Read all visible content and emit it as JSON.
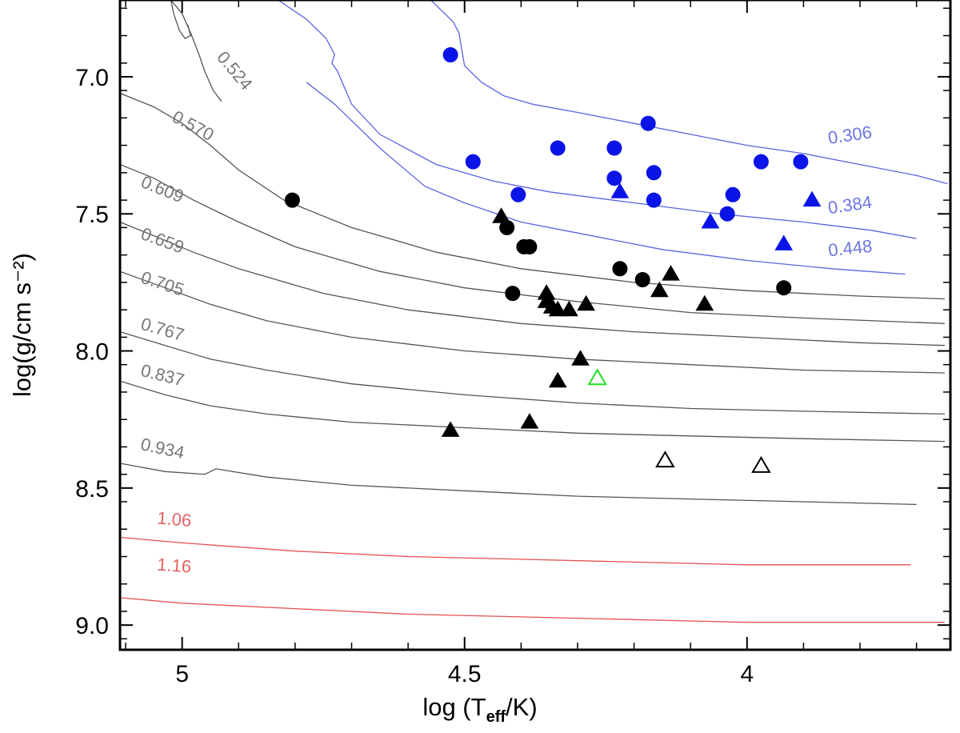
{
  "chart_data": {
    "type": "scatter",
    "title": "",
    "xlabel_prefix": "log (T",
    "xlabel_sub": "eff",
    "xlabel_suffix": "/K)",
    "ylabel": "log(g/cm s⁻²)",
    "xlim": [
      5.11,
      3.64
    ],
    "ylim": [
      9.09,
      6.72
    ],
    "x_ticks": [
      5.0,
      4.5,
      4.0
    ],
    "x_tick_labels": [
      "5",
      "4.5",
      "4"
    ],
    "y_ticks": [
      7.0,
      7.5,
      8.0,
      8.5,
      9.0
    ],
    "y_tick_labels": [
      "7.0",
      "7.5",
      "8.0",
      "8.5",
      "9.0"
    ],
    "colors": {
      "gray_track": "#555555",
      "gray_label": "#777777",
      "blue_track": "#5a64e0",
      "blue_label": "#6b76e2",
      "red_track": "#e65050",
      "red_label": "#e46262",
      "blue_marker": "#0a14e6",
      "black_marker": "#000000",
      "green_marker": "#22dd22"
    },
    "cooling_tracks": [
      {
        "label": "0.306",
        "color": "blue",
        "label_at": [
          3.855,
          7.245
        ],
        "label_angle": -8,
        "x": [
          4.56,
          4.54,
          4.52,
          4.51,
          4.505,
          4.5,
          4.47,
          4.43,
          4.38,
          4.3,
          4.2,
          4.1,
          4.0,
          3.9,
          3.8,
          3.7,
          3.645
        ],
        "y": [
          6.72,
          6.76,
          6.8,
          6.84,
          6.9,
          6.96,
          7.02,
          7.07,
          7.1,
          7.13,
          7.17,
          7.21,
          7.25,
          7.28,
          7.32,
          7.36,
          7.39
        ]
      },
      {
        "label": "0.384",
        "color": "blue",
        "label_at": [
          3.855,
          7.5
        ],
        "label_angle": -8,
        "x": [
          4.83,
          4.78,
          4.745,
          4.73,
          4.735,
          4.725,
          4.7,
          4.65,
          4.55,
          4.45,
          4.35,
          4.2,
          4.05,
          3.9,
          3.78,
          3.7
        ],
        "y": [
          6.72,
          6.79,
          6.86,
          6.92,
          6.95,
          6.98,
          7.1,
          7.21,
          7.32,
          7.38,
          7.42,
          7.46,
          7.5,
          7.53,
          7.56,
          7.59
        ]
      },
      {
        "label": "0.448",
        "color": "blue",
        "label_at": [
          3.855,
          7.655
        ],
        "label_angle": -6,
        "x": [
          4.78,
          4.73,
          4.65,
          4.57,
          4.5,
          4.4,
          4.3,
          4.15,
          4.0,
          3.85,
          3.72
        ],
        "y": [
          7.02,
          7.1,
          7.26,
          7.4,
          7.46,
          7.53,
          7.57,
          7.63,
          7.67,
          7.7,
          7.72
        ]
      },
      {
        "label": "0.524",
        "color": "gray",
        "label_at": [
          4.94,
          6.93
        ],
        "label_angle": 50,
        "x": [
          5.02,
          5.0,
          4.985,
          4.97,
          4.96,
          4.945,
          4.93
        ],
        "y": [
          6.72,
          6.77,
          6.84,
          6.92,
          6.98,
          7.05,
          7.09
        ]
      },
      {
        "label": "0.570",
        "color": "gray",
        "label_at": [
          5.02,
          7.16
        ],
        "label_angle": 28,
        "x": [
          5.11,
          5.05,
          5.0,
          4.95,
          4.9,
          4.82,
          4.7,
          4.55,
          4.4,
          4.2,
          4.0,
          3.8,
          3.65
        ],
        "y": [
          7.06,
          7.11,
          7.17,
          7.25,
          7.34,
          7.45,
          7.55,
          7.64,
          7.7,
          7.75,
          7.78,
          7.8,
          7.81
        ]
      },
      {
        "label": "0.609",
        "color": "gray",
        "label_at": [
          5.075,
          7.4
        ],
        "label_angle": 22,
        "x": [
          5.11,
          5.05,
          4.98,
          4.9,
          4.8,
          4.65,
          4.5,
          4.3,
          4.1,
          3.9,
          3.65
        ],
        "y": [
          7.32,
          7.37,
          7.45,
          7.53,
          7.62,
          7.71,
          7.77,
          7.82,
          7.86,
          7.88,
          7.9
        ]
      },
      {
        "label": "0.659",
        "color": "gray",
        "label_at": [
          5.075,
          7.59
        ],
        "label_angle": 20,
        "x": [
          5.11,
          5.05,
          4.98,
          4.9,
          4.75,
          4.6,
          4.4,
          4.2,
          4.0,
          3.8,
          3.65
        ],
        "y": [
          7.53,
          7.58,
          7.64,
          7.7,
          7.79,
          7.85,
          7.9,
          7.93,
          7.95,
          7.97,
          7.98
        ]
      },
      {
        "label": "0.705",
        "color": "gray",
        "label_at": [
          5.075,
          7.75
        ],
        "label_angle": 18,
        "x": [
          5.11,
          5.03,
          4.95,
          4.85,
          4.7,
          4.5,
          4.3,
          4.1,
          3.9,
          3.65
        ],
        "y": [
          7.71,
          7.77,
          7.83,
          7.89,
          7.95,
          8.0,
          8.03,
          8.05,
          8.07,
          8.08
        ]
      },
      {
        "label": "0.767",
        "color": "gray",
        "label_at": [
          5.075,
          7.92
        ],
        "label_angle": 16,
        "x": [
          5.11,
          5.03,
          4.95,
          4.85,
          4.7,
          4.5,
          4.3,
          4.1,
          3.9,
          3.65
        ],
        "y": [
          7.93,
          7.98,
          8.03,
          8.07,
          8.12,
          8.16,
          8.19,
          8.21,
          8.22,
          8.23
        ]
      },
      {
        "label": "0.837",
        "color": "gray",
        "label_at": [
          5.075,
          8.09
        ],
        "label_angle": 14,
        "x": [
          5.11,
          5.03,
          4.95,
          4.85,
          4.7,
          4.5,
          4.3,
          4.1,
          3.9,
          3.65
        ],
        "y": [
          8.11,
          8.16,
          8.2,
          8.23,
          8.26,
          8.28,
          8.3,
          8.31,
          8.32,
          8.33
        ]
      },
      {
        "label": "0.934",
        "color": "gray",
        "label_at": [
          5.075,
          8.36
        ],
        "label_angle": 12,
        "x": [
          5.11,
          5.03,
          4.96,
          4.95,
          4.94,
          4.85,
          4.7,
          4.5,
          4.3,
          4.1,
          3.9,
          3.7
        ],
        "y": [
          8.41,
          8.44,
          8.45,
          8.44,
          8.43,
          8.46,
          8.49,
          8.51,
          8.53,
          8.54,
          8.55,
          8.56
        ]
      },
      {
        "label": "1.06",
        "color": "red",
        "label_at": [
          5.045,
          8.63
        ],
        "label_angle": 5,
        "x": [
          5.11,
          5.0,
          4.8,
          4.6,
          4.4,
          4.2,
          4.0,
          3.8,
          3.71
        ],
        "y": [
          8.68,
          8.7,
          8.73,
          8.75,
          8.76,
          8.77,
          8.78,
          8.78,
          8.78
        ]
      },
      {
        "label": "1.16",
        "color": "red",
        "label_at": [
          5.045,
          8.8
        ],
        "label_angle": 4,
        "x": [
          5.11,
          5.0,
          4.8,
          4.6,
          4.4,
          4.2,
          4.0,
          3.8,
          3.65
        ],
        "y": [
          8.9,
          8.92,
          8.94,
          8.96,
          8.97,
          8.98,
          8.99,
          8.99,
          8.99
        ]
      }
    ],
    "bracket_curve": {
      "x": [
        5.02,
        5.015,
        5.005,
        4.995,
        4.985,
        4.99
      ],
      "y": [
        6.72,
        6.77,
        6.83,
        6.86,
        6.85,
        6.81
      ]
    },
    "series": [
      {
        "name": "blue-circles",
        "marker": "circle",
        "fill": "blue",
        "x": [
          4.525,
          4.485,
          4.405,
          4.335,
          4.235,
          4.235,
          4.175,
          4.165,
          4.165,
          4.035,
          4.025,
          3.975,
          3.905
        ],
        "y": [
          6.92,
          7.31,
          7.43,
          7.26,
          7.26,
          7.37,
          7.17,
          7.35,
          7.45,
          7.5,
          7.43,
          7.31,
          7.31
        ]
      },
      {
        "name": "blue-triangles",
        "marker": "triangle",
        "fill": "blue",
        "x": [
          4.225,
          4.065,
          3.935,
          3.885
        ],
        "y": [
          7.42,
          7.53,
          7.61,
          7.45
        ]
      },
      {
        "name": "black-circles",
        "marker": "circle",
        "fill": "black",
        "x": [
          4.805,
          4.425,
          4.395,
          4.385,
          4.415,
          4.225,
          4.185,
          3.935
        ],
        "y": [
          7.45,
          7.55,
          7.62,
          7.62,
          7.79,
          7.7,
          7.74,
          7.77
        ]
      },
      {
        "name": "black-triangles",
        "marker": "triangle",
        "fill": "black",
        "x": [
          4.435,
          4.355,
          4.355,
          4.345,
          4.335,
          4.315,
          4.285,
          4.295,
          4.155,
          4.135,
          4.075,
          4.335,
          4.385,
          4.525
        ],
        "y": [
          7.51,
          7.79,
          7.82,
          7.84,
          7.85,
          7.85,
          7.83,
          8.03,
          7.78,
          7.72,
          7.83,
          8.11,
          8.26,
          8.29
        ]
      },
      {
        "name": "open-triangles",
        "marker": "triangle",
        "fill": "none",
        "x": [
          4.145,
          3.975
        ],
        "y": [
          8.4,
          8.42
        ]
      },
      {
        "name": "green-triangle",
        "marker": "triangle",
        "fill": "none",
        "stroke": "green",
        "x": [
          4.265
        ],
        "y": [
          8.1
        ]
      }
    ]
  }
}
